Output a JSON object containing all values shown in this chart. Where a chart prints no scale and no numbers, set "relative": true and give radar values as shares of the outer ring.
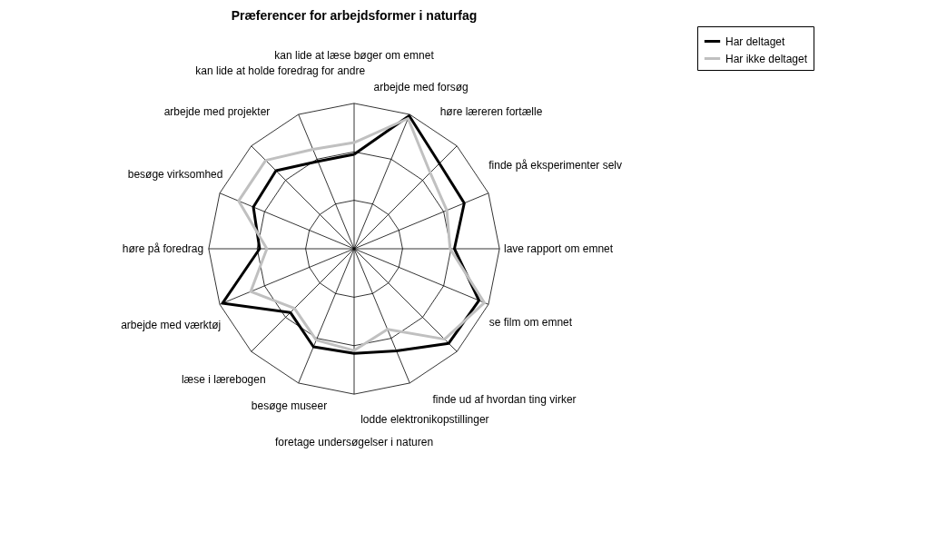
{
  "chart_data": {
    "type": "radar",
    "title": "Præferencer for arbejdsformer i naturfag",
    "relative": true,
    "grid": true,
    "legend": "right",
    "marker": "none",
    "line_style": "solid",
    "categories": [
      "kan lide at læse bøger om emnet",
      "arbejde med forsøg",
      "høre læreren fortælle",
      "finde på eksperimenter selv",
      "lave rapport om emnet",
      "se film om emnet",
      "finde ud af hvordan ting virker",
      "lodde elektronikopstillinger",
      "foretage undersøgelser i naturen",
      "besøge museer",
      "læse i lærebogen",
      "arbejde med værktøj",
      "høre på foredrag",
      "besøge virksomhed",
      "arbejde med projekter",
      "kan lide at holde foredrag for andre"
    ],
    "series": [
      {
        "name": "Har deltaget",
        "color": "#000000",
        "values": [
          0.65,
          0.99,
          0.83,
          0.82,
          0.69,
          0.93,
          0.92,
          0.76,
          0.72,
          0.73,
          0.62,
          0.98,
          0.65,
          0.75,
          0.76,
          0.65
        ]
      },
      {
        "name": "Har ikke deltaget",
        "color": "#c0c0c0",
        "values": [
          0.73,
          0.97,
          0.74,
          0.69,
          0.66,
          0.97,
          0.88,
          0.6,
          0.7,
          0.68,
          0.58,
          0.77,
          0.6,
          0.86,
          0.86,
          0.74
        ]
      }
    ]
  }
}
